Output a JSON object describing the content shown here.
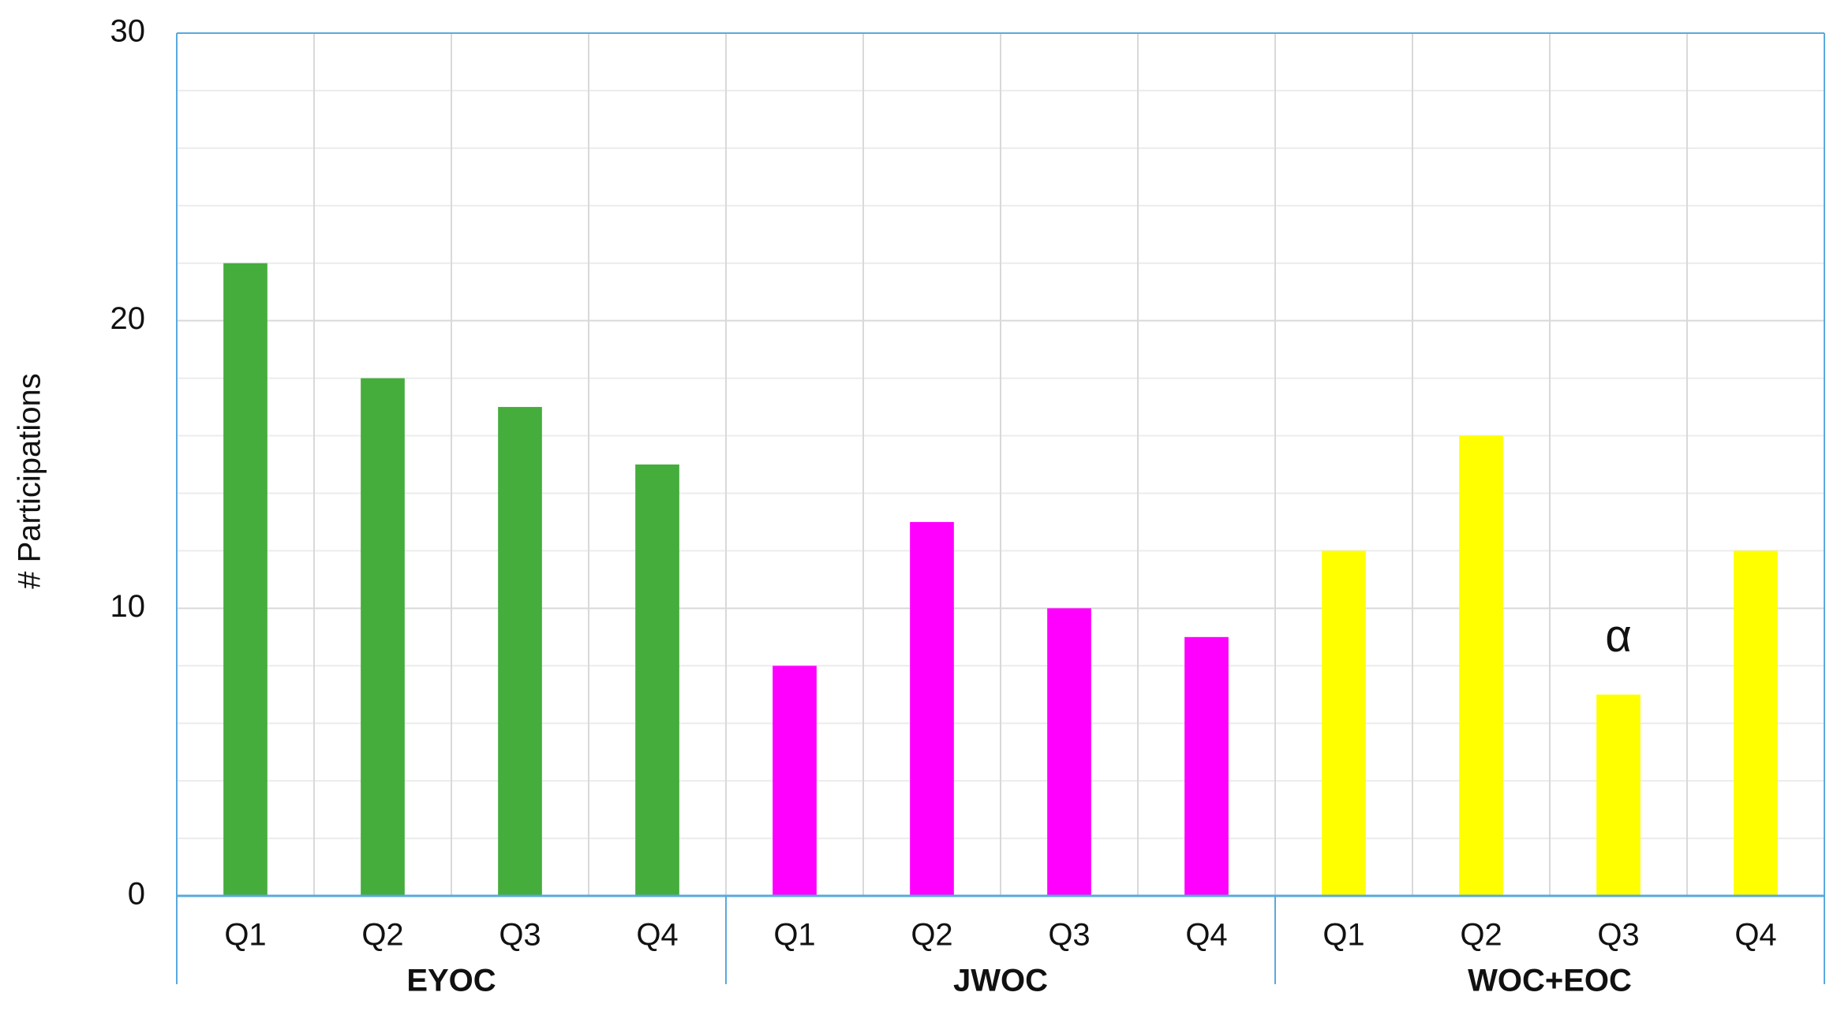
{
  "chart_data": {
    "type": "bar",
    "y_label": "# Participations",
    "ylim": [
      0,
      30
    ],
    "yticks": [
      0,
      10,
      20,
      30
    ],
    "minor_yticks": [
      2,
      4,
      6,
      8,
      12,
      14,
      16,
      18,
      22,
      24,
      26,
      28
    ],
    "grid": true,
    "groups": [
      {
        "name": "EYOC",
        "color": "#45ad3c",
        "categories": [
          "Q1",
          "Q2",
          "Q3",
          "Q4"
        ],
        "values": [
          22,
          18,
          17,
          15
        ],
        "annotations": [
          null,
          null,
          null,
          null
        ]
      },
      {
        "name": "JWOC",
        "color": "#ff00ff",
        "categories": [
          "Q1",
          "Q2",
          "Q3",
          "Q4"
        ],
        "values": [
          8,
          13,
          10,
          9
        ],
        "annotations": [
          null,
          null,
          null,
          null
        ]
      },
      {
        "name": "WOC+EOC",
        "color": "#ffff00",
        "categories": [
          "Q1",
          "Q2",
          "Q3",
          "Q4"
        ],
        "values": [
          12,
          16,
          7,
          12
        ],
        "annotations": [
          null,
          null,
          "α",
          null
        ]
      }
    ]
  }
}
